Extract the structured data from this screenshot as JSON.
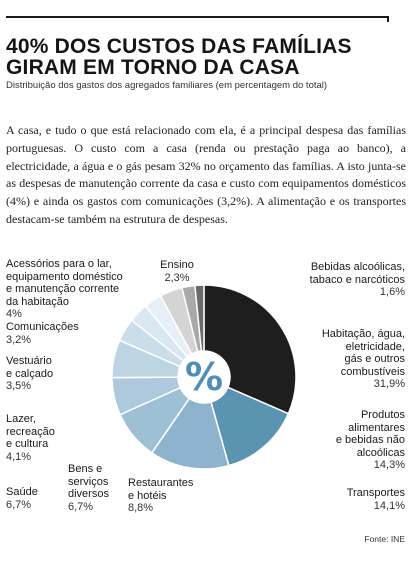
{
  "header": {
    "title_line1": "40% DOS CUSTOS DAS FAMÍLIAS",
    "title_line2": "GIRAM EM TORNO DA CASA",
    "subtitle": "Distribuição dos gastos dos agregados familiares (em percentagem do total)"
  },
  "lede": "A casa, e tudo o que está relacionado com ela, é a principal despesa das famílias portuguesas. O custo com a casa (renda ou prestação paga ao banco), a electricidade, a água e o gás pesam 32% no orçamento das famílias. A isto junta-se as despesas de manutenção corrente da casa e custo com equipamentos domésticos (4%) e ainda os gastos com comunicações (3,2%). A alimentação e os transportes destacam-se também na estrutura de despesas.",
  "center_symbol": "%",
  "source": "Fonte: INE",
  "chart_data": {
    "type": "pie",
    "donut": true,
    "title": "",
    "slices": [
      {
        "label_lines": [
          "Habitação, água,",
          "eletricidade,",
          "gás e outros",
          "combustíveis"
        ],
        "value": 31.9,
        "value_label": "31,9%",
        "color": "#1e1e1e"
      },
      {
        "label_lines": [
          "Produtos",
          "alimentares",
          "e bebidas não",
          "alcoólicas"
        ],
        "value": 14.3,
        "value_label": "14,3%",
        "color": "#5b93b3"
      },
      {
        "label_lines": [
          "Transportes"
        ],
        "value": 14.1,
        "value_label": "14,1%",
        "color": "#8db4cc"
      },
      {
        "label_lines": [
          "Restaurantes",
          "e hotéis"
        ],
        "value": 8.8,
        "value_label": "8,8%",
        "color": "#9dc0d5"
      },
      {
        "label_lines": [
          "Bens e",
          "serviços",
          "diversos"
        ],
        "value": 6.7,
        "value_label": "6,7%",
        "color": "#adc9db"
      },
      {
        "label_lines": [
          "Saúde"
        ],
        "value": 6.7,
        "value_label": "6,7%",
        "color": "#bcd4e3"
      },
      {
        "label_lines": [
          "Lazer,",
          "recreação",
          "e cultura"
        ],
        "value": 4.1,
        "value_label": "4,1%",
        "color": "#cadeea"
      },
      {
        "label_lines": [
          "Vestuário",
          "e calçado"
        ],
        "value": 3.5,
        "value_label": "3,5%",
        "color": "#d9e7f0"
      },
      {
        "label_lines": [
          "Comunicações"
        ],
        "value": 3.2,
        "value_label": "3,2%",
        "color": "#e6eff5"
      },
      {
        "label_lines": [
          "Acessórios para o lar,",
          "equipamento doméstico",
          "e manutenção corrente",
          "da habitação"
        ],
        "value": 4.0,
        "value_label": "4%",
        "color": "#d4d4d4"
      },
      {
        "label_lines": [
          "Ensino"
        ],
        "value": 2.3,
        "value_label": "2,3%",
        "color": "#a9a9a9"
      },
      {
        "label_lines": [
          "Bebidas alcoólicas,",
          "tabaco e narcóticos"
        ],
        "value": 1.6,
        "value_label": "1,6%",
        "color": "#6b6b6b"
      }
    ]
  }
}
